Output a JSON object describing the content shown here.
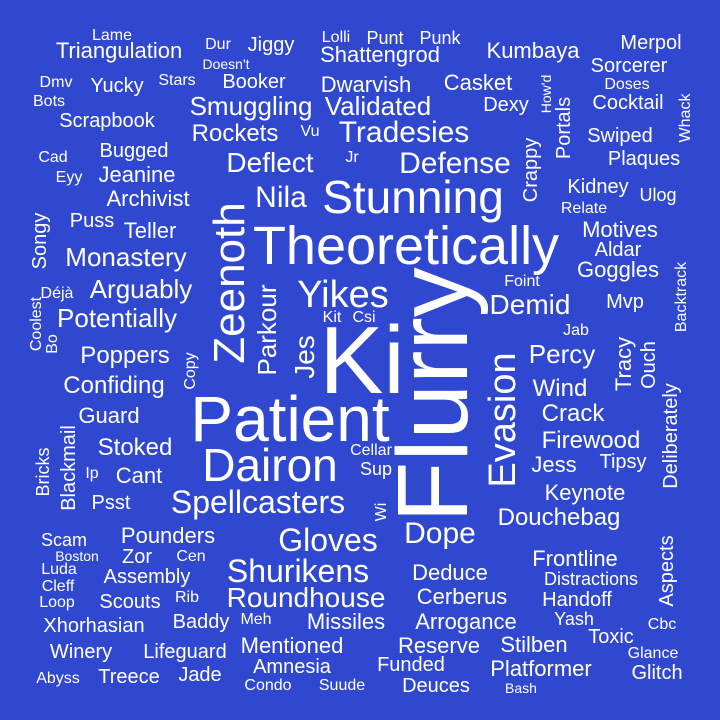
{
  "background": "#3048d0",
  "text_color": "#ffffff",
  "words": [
    {
      "text": "Flurry",
      "weight": 100,
      "vertical": true
    },
    {
      "text": "Ki",
      "weight": 96,
      "vertical": false
    },
    {
      "text": "Patient",
      "weight": 80,
      "vertical": false
    },
    {
      "text": "Theoretically",
      "weight": 78,
      "vertical": false
    },
    {
      "text": "Zeenoth",
      "weight": 62,
      "vertical": true
    },
    {
      "text": "Dairon",
      "weight": 58,
      "vertical": false
    },
    {
      "text": "Stunning",
      "weight": 56,
      "vertical": false
    },
    {
      "text": "Evasion",
      "weight": 50,
      "vertical": true
    },
    {
      "text": "Yikes",
      "weight": 46,
      "vertical": false
    },
    {
      "text": "Spellcasters",
      "weight": 42,
      "vertical": false
    },
    {
      "text": "Shurikens",
      "weight": 40,
      "vertical": false
    },
    {
      "text": "Gloves",
      "weight": 40,
      "vertical": false
    },
    {
      "text": "Defense",
      "weight": 38,
      "vertical": false
    },
    {
      "text": "Dope",
      "weight": 38,
      "vertical": false
    },
    {
      "text": "Tradesies",
      "weight": 36,
      "vertical": false
    },
    {
      "text": "Jes",
      "weight": 36,
      "vertical": true
    },
    {
      "text": "Roundhouse",
      "weight": 34,
      "vertical": false
    },
    {
      "text": "Deflect",
      "weight": 34,
      "vertical": false
    },
    {
      "text": "Nila",
      "weight": 34,
      "vertical": false
    },
    {
      "text": "Parkour",
      "weight": 34,
      "vertical": true
    },
    {
      "text": "Smuggling",
      "weight": 32,
      "vertical": false
    },
    {
      "text": "Validated",
      "weight": 32,
      "vertical": false
    },
    {
      "text": "Demid",
      "weight": 32,
      "vertical": false
    },
    {
      "text": "Potentially",
      "weight": 32,
      "vertical": false
    },
    {
      "text": "Douchebag",
      "weight": 30,
      "vertical": false
    },
    {
      "text": "Arguably",
      "weight": 30,
      "vertical": false
    },
    {
      "text": "Percy",
      "weight": 30,
      "vertical": false
    },
    {
      "text": "Wind",
      "weight": 30,
      "vertical": false
    },
    {
      "text": "Crack",
      "weight": 30,
      "vertical": false
    },
    {
      "text": "Firewood",
      "weight": 28,
      "vertical": false
    },
    {
      "text": "Monastery",
      "weight": 28,
      "vertical": false
    },
    {
      "text": "Stoked",
      "weight": 28,
      "vertical": false
    },
    {
      "text": "Poppers",
      "weight": 28,
      "vertical": false
    },
    {
      "text": "Confiding",
      "weight": 28,
      "vertical": false
    },
    {
      "text": "Rockets",
      "weight": 28,
      "vertical": false
    },
    {
      "text": "Shattengrod",
      "weight": 28,
      "vertical": false
    },
    {
      "text": "Cerberus",
      "weight": 26,
      "vertical": false
    },
    {
      "text": "Arrogance",
      "weight": 26,
      "vertical": false
    },
    {
      "text": "Missiles",
      "weight": 26,
      "vertical": false
    },
    {
      "text": "Deduce",
      "weight": 26,
      "vertical": false
    },
    {
      "text": "Pounders",
      "weight": 26,
      "vertical": false
    },
    {
      "text": "Jess",
      "weight": 26,
      "vertical": false
    },
    {
      "text": "Keynote",
      "weight": 26,
      "vertical": false
    },
    {
      "text": "Frontline",
      "weight": 26,
      "vertical": false
    },
    {
      "text": "Tracy",
      "weight": 26,
      "vertical": true
    },
    {
      "text": "Deliberately",
      "weight": 24,
      "vertical": true
    },
    {
      "text": "Archivist",
      "weight": 24,
      "vertical": false
    },
    {
      "text": "Jeanine",
      "weight": 24,
      "vertical": false
    },
    {
      "text": "Teller",
      "weight": 24,
      "vertical": false
    },
    {
      "text": "Guard",
      "weight": 24,
      "vertical": false
    },
    {
      "text": "Cant",
      "weight": 24,
      "vertical": false
    },
    {
      "text": "Motives",
      "weight": 24,
      "vertical": false
    },
    {
      "text": "Goggles",
      "weight": 24,
      "vertical": false
    },
    {
      "text": "Kumbaya",
      "weight": 24,
      "vertical": false
    },
    {
      "text": "Triangulation",
      "weight": 24,
      "vertical": false
    },
    {
      "text": "Dwarvish",
      "weight": 24,
      "vertical": false
    },
    {
      "text": "Casket",
      "weight": 24,
      "vertical": false
    },
    {
      "text": "Mentioned",
      "weight": 24,
      "vertical": false
    },
    {
      "text": "Reserve",
      "weight": 24,
      "vertical": false
    },
    {
      "text": "Stilben",
      "weight": 24,
      "vertical": false
    },
    {
      "text": "Platformer",
      "weight": 24,
      "vertical": false
    },
    {
      "text": "Amnesia",
      "weight": 22,
      "vertical": false
    },
    {
      "text": "Funded",
      "weight": 22,
      "vertical": false
    },
    {
      "text": "Deuces",
      "weight": 22,
      "vertical": false
    },
    {
      "text": "Handoff",
      "weight": 22,
      "vertical": false
    },
    {
      "text": "Toxic",
      "weight": 22,
      "vertical": false
    },
    {
      "text": "Yucky",
      "weight": 22,
      "vertical": false
    },
    {
      "text": "Booker",
      "weight": 22,
      "vertical": false
    },
    {
      "text": "Jiggy",
      "weight": 22,
      "vertical": false
    },
    {
      "text": "Bugged",
      "weight": 22,
      "vertical": false
    },
    {
      "text": "Scrapbook",
      "weight": 22,
      "vertical": false
    },
    {
      "text": "Scouts",
      "weight": 22,
      "vertical": false
    },
    {
      "text": "Assembly",
      "weight": 22,
      "vertical": false
    },
    {
      "text": "Zor",
      "weight": 22,
      "vertical": false
    },
    {
      "text": "Baddy",
      "weight": 22,
      "vertical": false
    },
    {
      "text": "Lifeguard",
      "weight": 22,
      "vertical": false
    },
    {
      "text": "Treece",
      "weight": 22,
      "vertical": false
    },
    {
      "text": "Jade",
      "weight": 22,
      "vertical": false
    },
    {
      "text": "Xhorhasian",
      "weight": 22,
      "vertical": false
    },
    {
      "text": "Winery",
      "weight": 22,
      "vertical": false
    },
    {
      "text": "Psst",
      "weight": 22,
      "vertical": false
    },
    {
      "text": "Puss",
      "weight": 22,
      "vertical": false
    },
    {
      "text": "Dexy",
      "weight": 22,
      "vertical": false
    },
    {
      "text": "Cocktail",
      "weight": 22,
      "vertical": false
    },
    {
      "text": "Swiped",
      "weight": 22,
      "vertical": false
    },
    {
      "text": "Plaques",
      "weight": 22,
      "vertical": false
    },
    {
      "text": "Kidney",
      "weight": 22,
      "vertical": false
    },
    {
      "text": "Aldar",
      "weight": 22,
      "vertical": false
    },
    {
      "text": "Mvp",
      "weight": 22,
      "vertical": false
    },
    {
      "text": "Tipsy",
      "weight": 22,
      "vertical": false
    },
    {
      "text": "Glitch",
      "weight": 22,
      "vertical": false
    },
    {
      "text": "Merpol",
      "weight": 22,
      "vertical": false
    },
    {
      "text": "Sorcerer",
      "weight": 22,
      "vertical": false
    },
    {
      "text": "Crappy",
      "weight": 22,
      "vertical": true
    },
    {
      "text": "Portals",
      "weight": 22,
      "vertical": true
    },
    {
      "text": "Ouch",
      "weight": 22,
      "vertical": true
    },
    {
      "text": "Aspects",
      "weight": 22,
      "vertical": true
    },
    {
      "text": "Songy",
      "weight": 22,
      "vertical": true
    },
    {
      "text": "Blackmail",
      "weight": 22,
      "vertical": true
    },
    {
      "text": "Bricks",
      "weight": 20,
      "vertical": true
    },
    {
      "text": "Punt",
      "weight": 20,
      "vertical": false
    },
    {
      "text": "Punk",
      "weight": 20,
      "vertical": false
    },
    {
      "text": "Dur",
      "weight": 18,
      "vertical": false
    },
    {
      "text": "Lolli",
      "weight": 18,
      "vertical": false
    },
    {
      "text": "Lame",
      "weight": 18,
      "vertical": false
    },
    {
      "text": "Doesn't",
      "weight": 17,
      "vertical": false
    },
    {
      "text": "Stars",
      "weight": 18,
      "vertical": false
    },
    {
      "text": "Dmv",
      "weight": 18,
      "vertical": false
    },
    {
      "text": "Bots",
      "weight": 18,
      "vertical": false
    },
    {
      "text": "Vu",
      "weight": 18,
      "vertical": false
    },
    {
      "text": "Jr",
      "weight": 18,
      "vertical": false
    },
    {
      "text": "Cad",
      "weight": 18,
      "vertical": false
    },
    {
      "text": "Eyy",
      "weight": 18,
      "vertical": false
    },
    {
      "text": "Déjà",
      "weight": 18,
      "vertical": false
    },
    {
      "text": "Coolest",
      "weight": 18,
      "vertical": true
    },
    {
      "text": "Bo",
      "weight": 18,
      "vertical": true
    },
    {
      "text": "Copy",
      "weight": 18,
      "vertical": true
    },
    {
      "text": "Kit",
      "weight": 18,
      "vertical": false
    },
    {
      "text": "Csi",
      "weight": 18,
      "vertical": false
    },
    {
      "text": "Foint",
      "weight": 18,
      "vertical": false
    },
    {
      "text": "Relate",
      "weight": 18,
      "vertical": false
    },
    {
      "text": "Ulog",
      "weight": 18,
      "vertical": false
    },
    {
      "text": "Doses",
      "weight": 18,
      "vertical": false
    },
    {
      "text": "How'd",
      "weight": 18,
      "vertical": true
    },
    {
      "text": "Whack",
      "weight": 18,
      "vertical": true
    },
    {
      "text": "Backtrack",
      "weight": 18,
      "vertical": true
    },
    {
      "text": "Jab",
      "weight": 18,
      "vertical": false
    },
    {
      "text": "Cellar",
      "weight": 18,
      "vertical": false
    },
    {
      "text": "Sup",
      "weight": 18,
      "vertical": false
    },
    {
      "text": "Wi",
      "weight": 18,
      "vertical": true
    },
    {
      "text": "Ip",
      "weight": 18,
      "vertical": false
    },
    {
      "text": "Scam",
      "weight": 18,
      "vertical": false
    },
    {
      "text": "Boston",
      "weight": 18,
      "vertical": false
    },
    {
      "text": "Luda",
      "weight": 18,
      "vertical": false
    },
    {
      "text": "Cleff",
      "weight": 18,
      "vertical": false
    },
    {
      "text": "Loop",
      "weight": 18,
      "vertical": false
    },
    {
      "text": "Cen",
      "weight": 18,
      "vertical": false
    },
    {
      "text": "Rib",
      "weight": 18,
      "vertical": false
    },
    {
      "text": "Meh",
      "weight": 18,
      "vertical": false
    },
    {
      "text": "Distractions",
      "weight": 18,
      "vertical": false
    },
    {
      "text": "Yash",
      "weight": 18,
      "vertical": false
    },
    {
      "text": "Cbc",
      "weight": 18,
      "vertical": false
    },
    {
      "text": "Glance",
      "weight": 18,
      "vertical": false
    },
    {
      "text": "Abyss",
      "weight": 18,
      "vertical": false
    },
    {
      "text": "Condo",
      "weight": 18,
      "vertical": false
    },
    {
      "text": "Suude",
      "weight": 18,
      "vertical": false
    },
    {
      "text": "Bash",
      "weight": 18,
      "vertical": false
    }
  ]
}
